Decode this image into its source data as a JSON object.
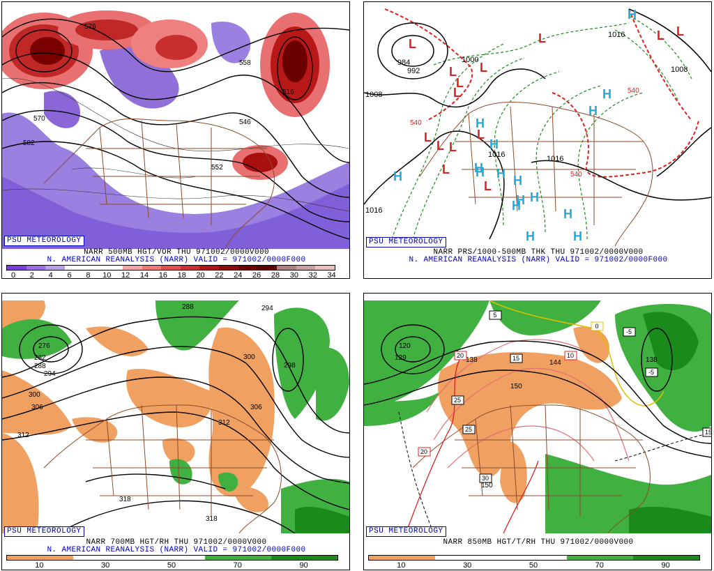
{
  "panels": [
    {
      "badge": "PSU METEOROLOGY",
      "caption_line1": "NARR 500MB HGT/VOR THU 971002/0000V000",
      "caption_line2": "N. AMERICAN REANALYSIS (NARR) VALID = 971002/0000F000",
      "colorbar": {
        "ticks": [
          "0",
          "2",
          "4",
          "6",
          "8",
          "10",
          "12",
          "14",
          "16",
          "18",
          "20",
          "22",
          "24",
          "26",
          "28",
          "30",
          "32",
          "34"
        ],
        "colors": [
          "#7a3fd6",
          "#9b6fe0",
          "#b8a0ea",
          "#ffffff",
          "#ffffff",
          "#ffffff",
          "#f4a6a6",
          "#ee7a7a",
          "#e05050",
          "#cc3030",
          "#b01818",
          "#8c0c0c",
          "#6e0000",
          "#5a0000",
          "#b08080",
          "#c8a0a0",
          "#e8c0c0"
        ]
      },
      "labels": [
        "576",
        "558",
        "570",
        "582",
        "516",
        "546",
        "552"
      ]
    },
    {
      "badge": "PSU METEOROLOGY",
      "caption_line1": "NARR PRS/1000-500MB THK THU 971002/0000V000",
      "caption_line2": "N. AMERICAN REANALYSIS (NARR) VALID = 971002/0000F000",
      "labels": [
        "984",
        "992",
        "1000",
        "1008",
        "1016",
        "1016",
        "1016",
        "1016",
        "1008",
        "540",
        "540",
        "540"
      ],
      "high_letter": "H",
      "low_letter": "L",
      "highs_count": 16,
      "lows_count": 14
    },
    {
      "badge": "PSU METEOROLOGY",
      "caption_line1": "NARR 700MB HGT/RH THU 971002/0000V000",
      "caption_line2": "N. AMERICAN REANALYSIS (NARR) VALID = 971002/0000F000",
      "colorbar": {
        "ticks": [
          "10",
          "30",
          "50",
          "70",
          "90"
        ],
        "colors": [
          "#f0a060",
          "#ffffff",
          "#ffffff",
          "#40b040",
          "#1a8a1a"
        ]
      },
      "labels": [
        "288",
        "294",
        "276",
        "282",
        "288",
        "294",
        "300",
        "306",
        "300",
        "306",
        "312",
        "312",
        "318",
        "318",
        "298"
      ]
    },
    {
      "badge": "PSU METEOROLOGY",
      "caption_line1": "NARR 850MB HGT/T/RH THU 971002/0000V000",
      "caption_line2": "",
      "colorbar": {
        "ticks": [
          "10",
          "30",
          "50",
          "70",
          "90"
        ],
        "colors": [
          "#f0a060",
          "#ffffff",
          "#ffffff",
          "#40b040",
          "#1a8a1a"
        ]
      },
      "labels": [
        "120",
        "129",
        "138",
        "150",
        "150",
        "138",
        "144"
      ],
      "temp_boxes": [
        "5",
        "20",
        "15",
        "10",
        "0",
        "-5",
        "-5",
        "25",
        "25",
        "20",
        "30",
        "15"
      ]
    }
  ]
}
